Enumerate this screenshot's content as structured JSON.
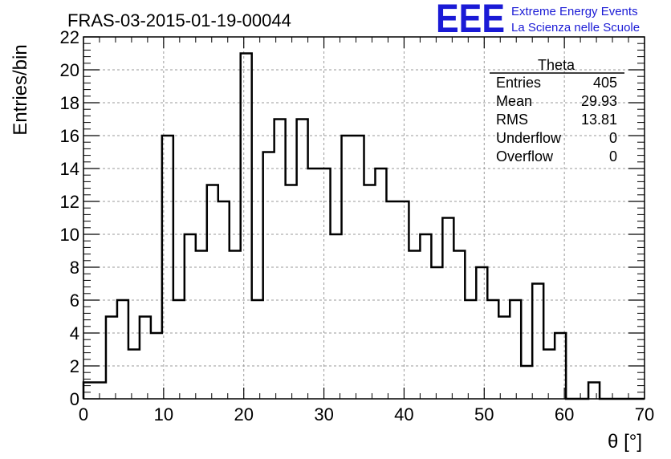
{
  "chart_data": {
    "type": "bar",
    "title": "FRAS-03-2015-01-19-00044",
    "xlabel": "θ [°]",
    "ylabel": "Entries/bin",
    "xlim": [
      0,
      70
    ],
    "ylim": [
      0,
      22
    ],
    "x_ticks": [
      "0",
      "10",
      "20",
      "30",
      "40",
      "50",
      "60",
      "70"
    ],
    "y_ticks": [
      "0",
      "2",
      "4",
      "6",
      "8",
      "10",
      "12",
      "14",
      "16",
      "18",
      "20",
      "22"
    ],
    "bin_width": 1.4,
    "values": [
      1,
      1,
      5,
      6,
      3,
      5,
      4,
      16,
      6,
      10,
      9,
      13,
      12,
      9,
      21,
      6,
      15,
      17,
      13,
      17,
      14,
      14,
      10,
      16,
      16,
      13,
      14,
      12,
      12,
      9,
      10,
      8,
      11,
      9,
      6,
      8,
      6,
      5,
      6,
      2,
      7,
      3,
      4,
      0,
      0,
      1,
      0,
      0,
      0,
      0
    ],
    "grid": true,
    "line_color": "#000000"
  },
  "stats": {
    "name": "Theta",
    "rows": [
      {
        "label": "Entries",
        "value": "405"
      },
      {
        "label": "Mean",
        "value": "29.93"
      },
      {
        "label": "RMS",
        "value": "13.81"
      },
      {
        "label": "Underflow",
        "value": "0"
      },
      {
        "label": "Overflow",
        "value": "0"
      }
    ]
  },
  "logo": {
    "mark": "EEE",
    "line1": "Extreme Energy Events",
    "line2": "La Scienza nelle Scuole",
    "color": "#1a1ad6"
  }
}
